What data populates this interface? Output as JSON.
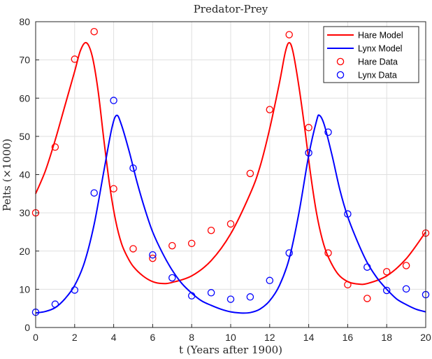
{
  "chart_data": {
    "type": "line",
    "title": "Predator-Prey",
    "xlabel": "t (Years after 1900)",
    "ylabel": "Pelts (×1000)",
    "xlim": [
      0,
      20
    ],
    "ylim": [
      0,
      80
    ],
    "xticks": [
      "0",
      "2",
      "4",
      "6",
      "8",
      "10",
      "12",
      "14",
      "16",
      "18",
      "20"
    ],
    "yticks": [
      "0",
      "10",
      "20",
      "30",
      "40",
      "50",
      "60",
      "70",
      "80"
    ],
    "grid": true,
    "legend_position": "top-right",
    "series": [
      {
        "name": "Hare Model",
        "kind": "line",
        "color": "#ff0000",
        "points": [
          [
            0,
            35
          ],
          [
            0.5,
            41
          ],
          [
            1,
            49
          ],
          [
            1.5,
            58
          ],
          [
            2,
            67
          ],
          [
            2.3,
            72.5
          ],
          [
            2.6,
            74.5
          ],
          [
            2.9,
            71
          ],
          [
            3.2,
            62
          ],
          [
            3.5,
            49
          ],
          [
            3.8,
            37
          ],
          [
            4.1,
            28
          ],
          [
            4.4,
            22
          ],
          [
            4.7,
            18.5
          ],
          [
            5,
            16
          ],
          [
            5.5,
            13.5
          ],
          [
            6,
            12
          ],
          [
            6.5,
            11.5
          ],
          [
            7,
            11.8
          ],
          [
            8,
            13.5
          ],
          [
            9,
            17.5
          ],
          [
            10,
            24.5
          ],
          [
            11,
            35
          ],
          [
            11.5,
            42
          ],
          [
            12,
            52
          ],
          [
            12.5,
            64
          ],
          [
            12.8,
            72
          ],
          [
            13,
            74.5
          ],
          [
            13.2,
            72
          ],
          [
            13.5,
            63
          ],
          [
            13.8,
            52
          ],
          [
            14.1,
            40
          ],
          [
            14.4,
            30
          ],
          [
            14.7,
            23
          ],
          [
            15,
            18.5
          ],
          [
            15.5,
            14
          ],
          [
            16,
            12
          ],
          [
            16.5,
            11.4
          ],
          [
            17,
            11.5
          ],
          [
            18,
            13.5
          ],
          [
            19,
            18
          ],
          [
            20,
            25
          ]
        ]
      },
      {
        "name": "Lynx Model",
        "kind": "line",
        "color": "#0000ff",
        "points": [
          [
            0,
            3.8
          ],
          [
            0.5,
            4.2
          ],
          [
            1,
            5.2
          ],
          [
            1.5,
            7.5
          ],
          [
            2,
            11
          ],
          [
            2.5,
            17
          ],
          [
            3,
            27
          ],
          [
            3.5,
            41
          ],
          [
            3.9,
            52
          ],
          [
            4.15,
            55.5
          ],
          [
            4.4,
            53
          ],
          [
            4.8,
            46
          ],
          [
            5.2,
            38
          ],
          [
            5.6,
            31
          ],
          [
            6,
            25
          ],
          [
            6.5,
            19.5
          ],
          [
            7,
            15
          ],
          [
            7.5,
            11.5
          ],
          [
            8,
            9
          ],
          [
            8.5,
            7
          ],
          [
            9,
            5.8
          ],
          [
            9.5,
            4.8
          ],
          [
            10,
            4.1
          ],
          [
            10.5,
            3.8
          ],
          [
            11,
            3.9
          ],
          [
            11.5,
            4.8
          ],
          [
            12,
            7
          ],
          [
            12.5,
            11
          ],
          [
            13,
            18
          ],
          [
            13.5,
            30
          ],
          [
            14,
            45
          ],
          [
            14.4,
            54
          ],
          [
            14.55,
            55.5
          ],
          [
            14.8,
            53
          ],
          [
            15.2,
            45
          ],
          [
            15.6,
            36
          ],
          [
            16,
            29
          ],
          [
            16.5,
            22.5
          ],
          [
            17,
            17
          ],
          [
            17.5,
            13
          ],
          [
            18,
            10
          ],
          [
            18.5,
            7.5
          ],
          [
            19,
            6
          ],
          [
            19.5,
            4.8
          ],
          [
            20,
            4.1
          ]
        ]
      },
      {
        "name": "Hare Data",
        "kind": "markers",
        "color": "#ff0000",
        "x": [
          0,
          1,
          2,
          3,
          4,
          5,
          6,
          7,
          8,
          9,
          10,
          11,
          12,
          13,
          14,
          15,
          16,
          17,
          18,
          19,
          20
        ],
        "values": [
          30,
          47.2,
          70.2,
          77.4,
          36.3,
          20.6,
          18.1,
          21.4,
          22,
          25.4,
          27.1,
          40.3,
          57,
          76.6,
          52.3,
          19.5,
          11.2,
          7.6,
          14.6,
          16.2,
          24.7
        ]
      },
      {
        "name": "Lynx Data",
        "kind": "markers",
        "color": "#0000ff",
        "x": [
          0,
          1,
          2,
          3,
          4,
          5,
          6,
          7,
          8,
          9,
          10,
          11,
          12,
          13,
          14,
          15,
          16,
          17,
          18,
          19,
          20
        ],
        "values": [
          4,
          6.1,
          9.8,
          35.2,
          59.4,
          41.7,
          19,
          13,
          8.3,
          9.1,
          7.4,
          8,
          12.3,
          19.5,
          45.7,
          51.1,
          29.7,
          15.8,
          9.7,
          10.1,
          8.6
        ]
      }
    ]
  }
}
